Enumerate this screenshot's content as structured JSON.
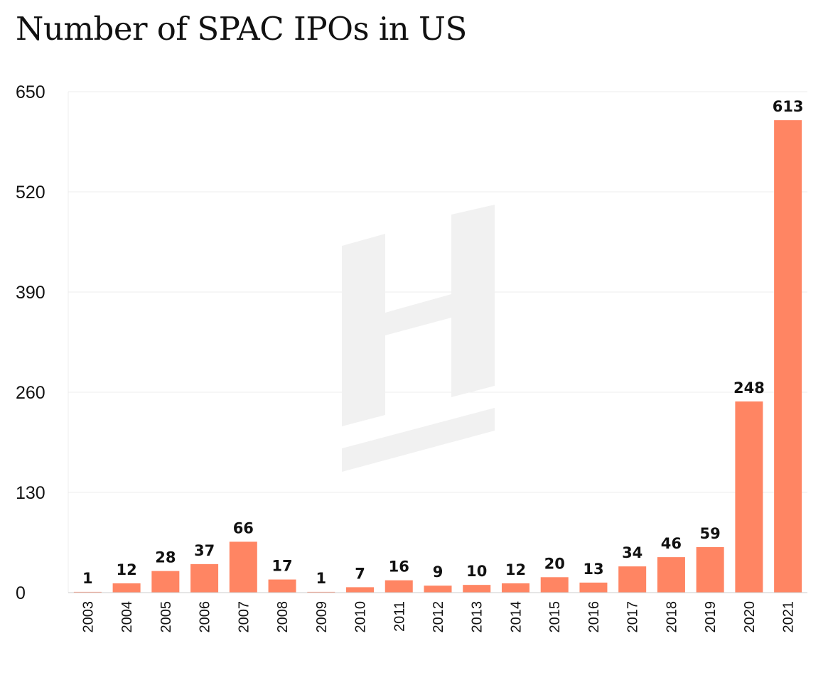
{
  "title": "Number of SPAC IPOs in US",
  "colors": {
    "bar": "#ff8563",
    "grid": "#ececec",
    "axis": "#cccccc",
    "watermark": "#f1f1f1",
    "text": "#111111"
  },
  "watermark_icon": "h-logo-watermark",
  "chart_data": {
    "type": "bar",
    "title": "Number of SPAC IPOs in US",
    "xlabel": "",
    "ylabel": "",
    "categories": [
      "2003",
      "2004",
      "2005",
      "2006",
      "2007",
      "2008",
      "2009",
      "2010",
      "2011",
      "2012",
      "2013",
      "2014",
      "2015",
      "2016",
      "2017",
      "2018",
      "2019",
      "2020",
      "2021"
    ],
    "values": [
      1,
      12,
      28,
      37,
      66,
      17,
      1,
      7,
      16,
      9,
      10,
      12,
      20,
      13,
      34,
      46,
      59,
      248,
      613
    ],
    "ylim": [
      0,
      650
    ],
    "yticks": [
      0,
      130,
      260,
      390,
      520,
      650
    ],
    "grid": true,
    "data_labels": true
  }
}
